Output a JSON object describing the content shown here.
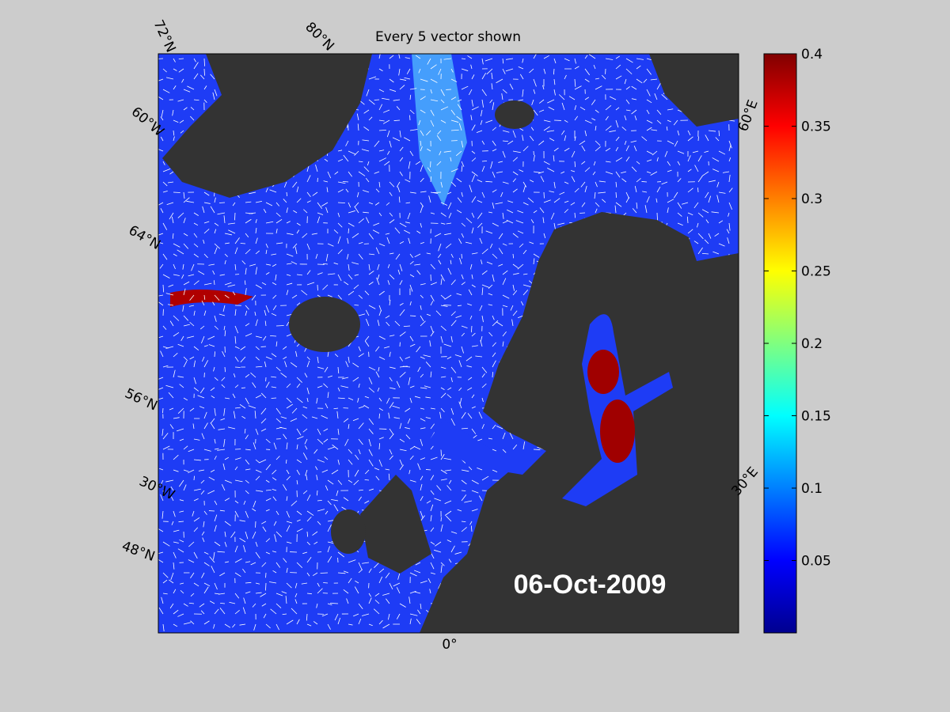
{
  "map": {
    "title": "Every 5 vector shown",
    "date_label": "06-Oct-2009",
    "lat_labels": [
      "72°N",
      "80°N",
      "60°W",
      "64°N",
      "56°N",
      "30°W",
      "48°N"
    ],
    "lon_labels": [
      "0°",
      "60°E",
      "30°E"
    ],
    "colorbar": {
      "range": [
        0,
        0.4
      ],
      "ticks": [
        0.05,
        0.1,
        0.15,
        0.2,
        0.25,
        0.3,
        0.35,
        0.4
      ]
    }
  }
}
